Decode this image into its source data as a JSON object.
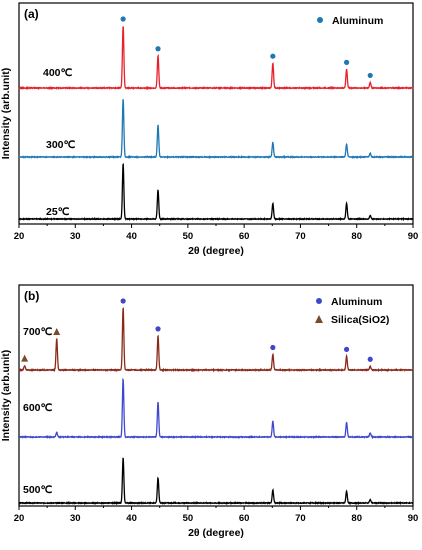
{
  "chart_data": [
    {
      "type": "line",
      "panel_label": "(a)",
      "xlabel": "2θ (degree)",
      "ylabel": "Intensity (arb.unit)",
      "xlim": [
        20,
        90
      ],
      "x_ticks": [
        20,
        30,
        40,
        50,
        60,
        70,
        80,
        90
      ],
      "legend": [
        {
          "label": "Aluminum",
          "marker": "circle",
          "color": "#1f77b4"
        }
      ],
      "legend_position": "top-right",
      "series": [
        {
          "name": "25℃",
          "color": "#000000",
          "peaks": [
            {
              "x": 38.5,
              "h": 0.95
            },
            {
              "x": 44.7,
              "h": 0.5
            },
            {
              "x": 65.1,
              "h": 0.27
            },
            {
              "x": 78.2,
              "h": 0.27
            },
            {
              "x": 82.4,
              "h": 0.06
            }
          ]
        },
        {
          "name": "300℃",
          "color": "#1f77b4",
          "peaks": [
            {
              "x": 38.5,
              "h": 1.0
            },
            {
              "x": 44.7,
              "h": 0.55
            },
            {
              "x": 65.1,
              "h": 0.25
            },
            {
              "x": 78.2,
              "h": 0.22
            },
            {
              "x": 82.4,
              "h": 0.06
            }
          ]
        },
        {
          "name": "400℃",
          "color": "#e8202a",
          "peaks": [
            {
              "x": 38.5,
              "h": 1.0
            },
            {
              "x": 44.7,
              "h": 0.52
            },
            {
              "x": 65.1,
              "h": 0.4
            },
            {
              "x": 78.2,
              "h": 0.3
            },
            {
              "x": 82.4,
              "h": 0.09
            }
          ]
        }
      ],
      "markers": [
        {
          "x": 38.5,
          "series": "400℃",
          "type": "Aluminum"
        },
        {
          "x": 44.7,
          "series": "400℃",
          "type": "Aluminum"
        },
        {
          "x": 65.1,
          "series": "400℃",
          "type": "Aluminum"
        },
        {
          "x": 78.2,
          "series": "400℃",
          "type": "Aluminum"
        },
        {
          "x": 82.4,
          "series": "400℃",
          "type": "Aluminum"
        }
      ]
    },
    {
      "type": "line",
      "panel_label": "(b)",
      "xlabel": "2θ (degree)",
      "ylabel": "Intensity (arb.unit)",
      "xlim": [
        20,
        90
      ],
      "x_ticks": [
        20,
        30,
        40,
        50,
        60,
        70,
        80,
        90
      ],
      "legend": [
        {
          "label": "Aluminum",
          "marker": "circle",
          "color": "#3f48cc"
        },
        {
          "label": "Silica(SiO2)",
          "marker": "triangle",
          "color": "#7a4a2a"
        }
      ],
      "legend_position": "top-right",
      "series": [
        {
          "name": "500℃",
          "color": "#000000",
          "peaks": [
            {
              "x": 38.5,
              "h": 0.8
            },
            {
              "x": 44.7,
              "h": 0.45
            },
            {
              "x": 65.1,
              "h": 0.23
            },
            {
              "x": 78.2,
              "h": 0.21
            },
            {
              "x": 82.4,
              "h": 0.06
            }
          ]
        },
        {
          "name": "600℃",
          "color": "#3f48cc",
          "peaks": [
            {
              "x": 26.7,
              "h": 0.08
            },
            {
              "x": 38.5,
              "h": 1.0
            },
            {
              "x": 44.7,
              "h": 0.6
            },
            {
              "x": 65.1,
              "h": 0.27
            },
            {
              "x": 78.2,
              "h": 0.25
            },
            {
              "x": 82.4,
              "h": 0.07
            }
          ]
        },
        {
          "name": "700℃",
          "color": "#8b2a1a",
          "peaks": [
            {
              "x": 21.0,
              "h": 0.07
            },
            {
              "x": 26.7,
              "h": 0.5
            },
            {
              "x": 38.5,
              "h": 1.0
            },
            {
              "x": 44.7,
              "h": 0.55
            },
            {
              "x": 65.1,
              "h": 0.25
            },
            {
              "x": 78.2,
              "h": 0.22
            },
            {
              "x": 82.4,
              "h": 0.06
            }
          ]
        }
      ],
      "markers": [
        {
          "x": 21.0,
          "series": "700℃",
          "type": "Silica(SiO2)"
        },
        {
          "x": 26.7,
          "series": "700℃",
          "type": "Silica(SiO2)"
        },
        {
          "x": 38.5,
          "series": "700℃",
          "type": "Aluminum"
        },
        {
          "x": 44.7,
          "series": "700℃",
          "type": "Aluminum"
        },
        {
          "x": 65.1,
          "series": "700℃",
          "type": "Aluminum"
        },
        {
          "x": 78.2,
          "series": "700℃",
          "type": "Aluminum"
        },
        {
          "x": 82.4,
          "series": "700℃",
          "type": "Aluminum"
        }
      ]
    }
  ]
}
